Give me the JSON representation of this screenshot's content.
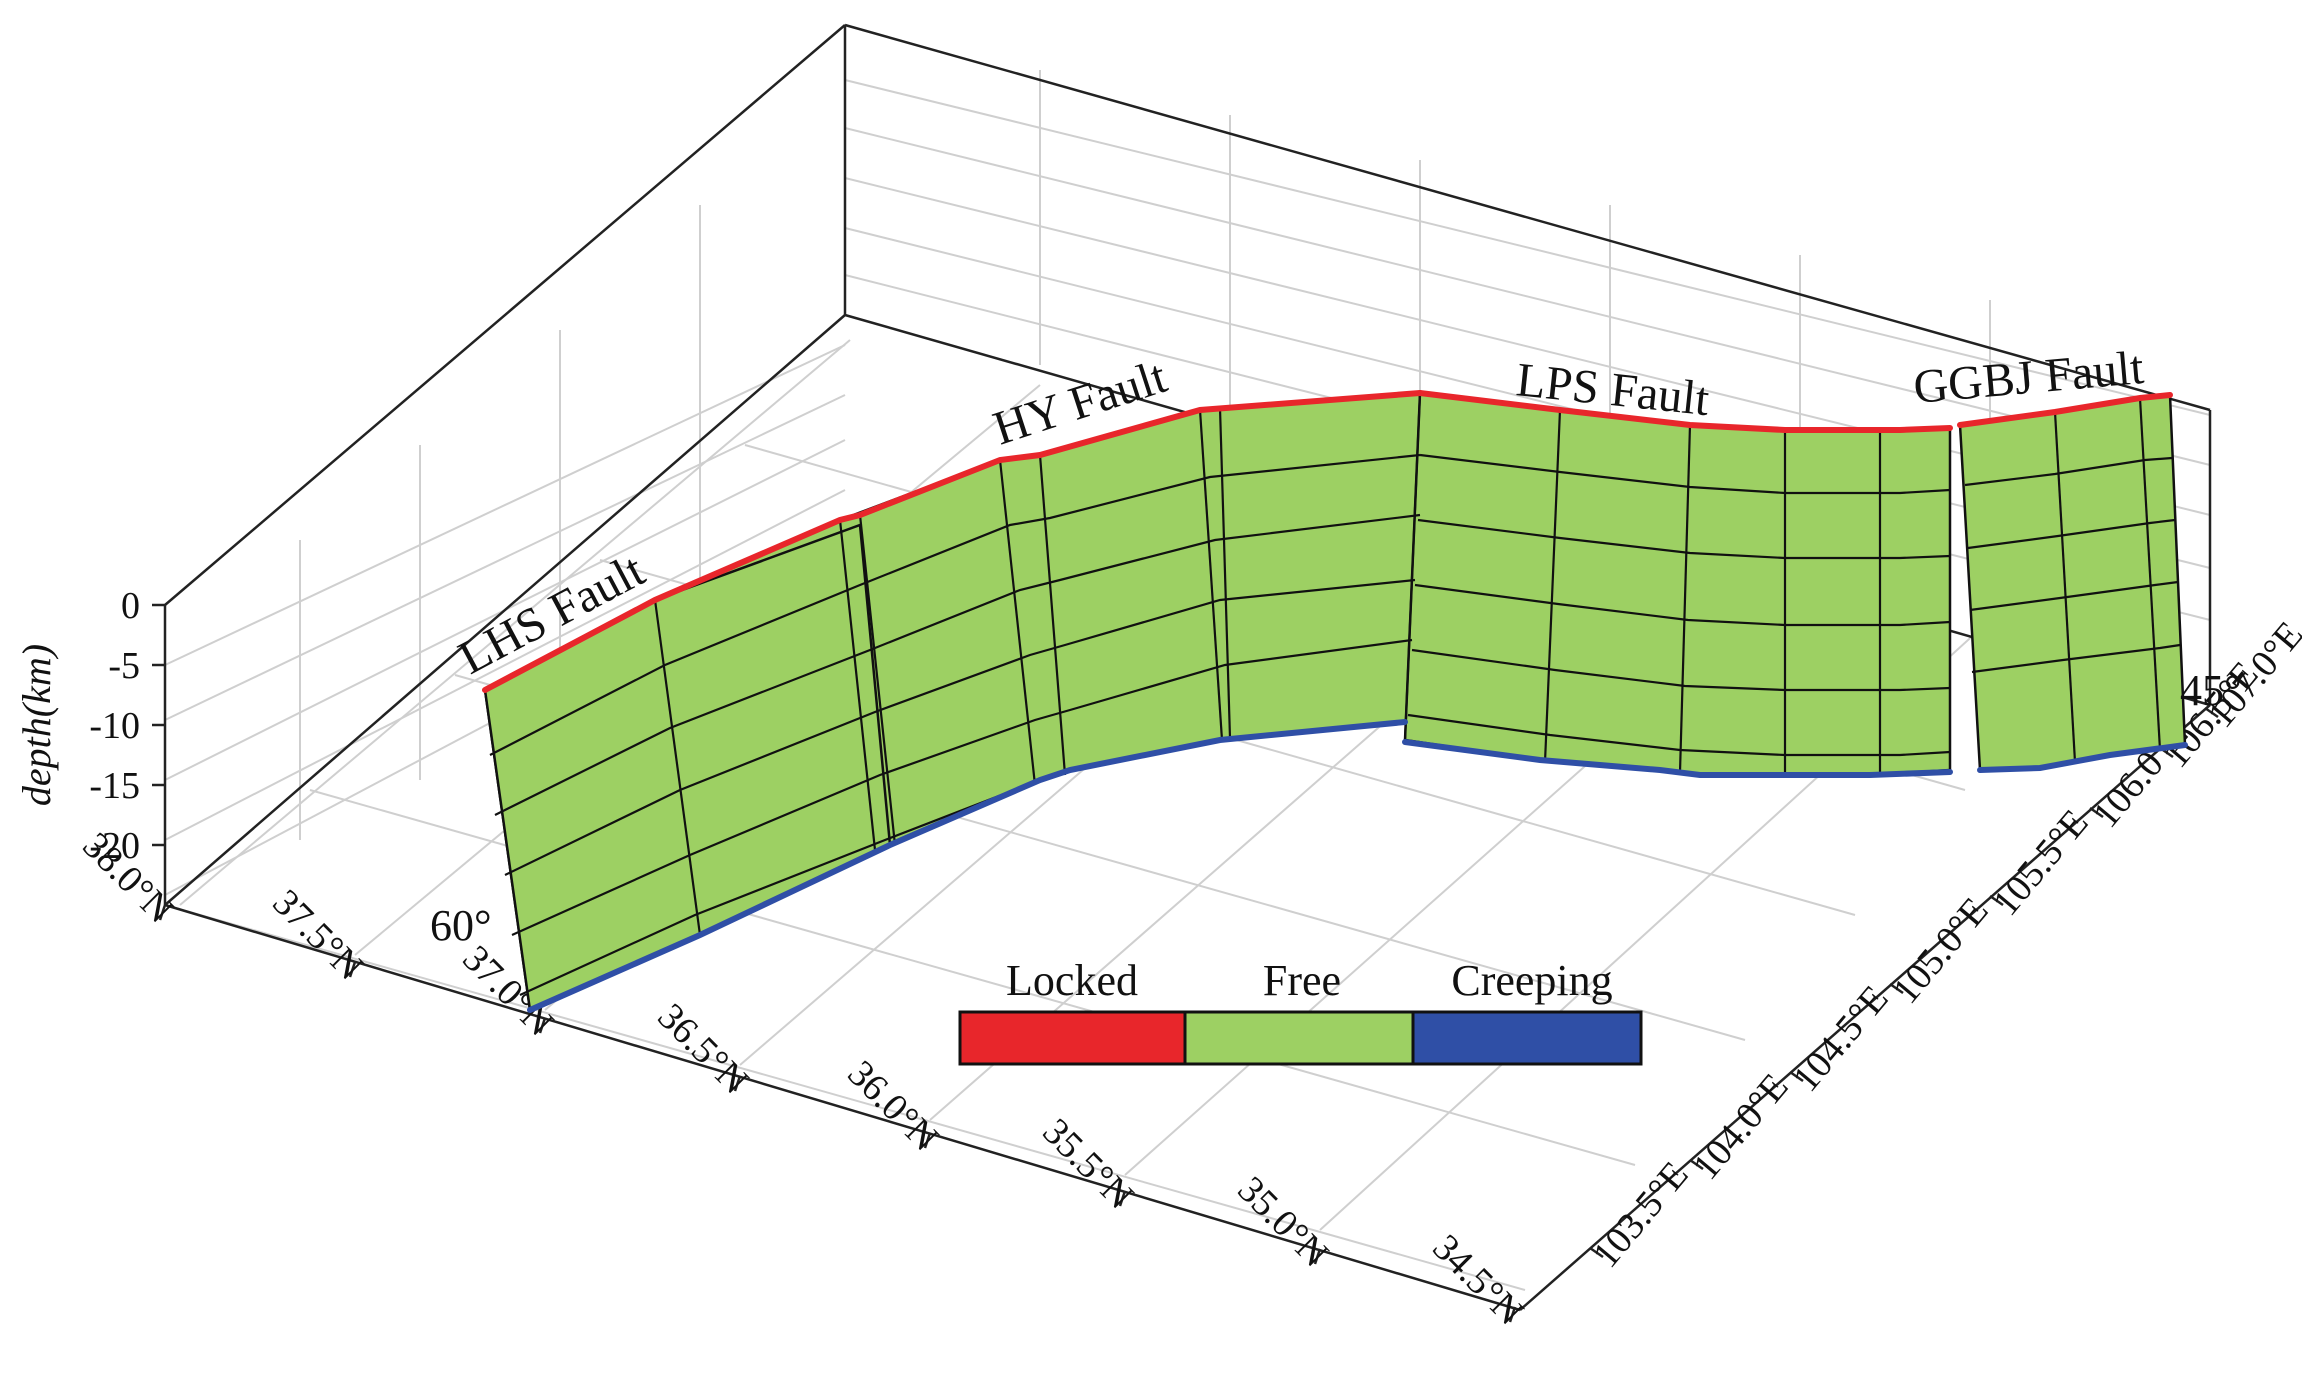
{
  "axes": {
    "depth_label": "depth(km)",
    "depth_ticks": [
      "0",
      "-5",
      "-10",
      "-15",
      "-20"
    ],
    "lat_ticks": [
      "38.0°N",
      "37.5°N",
      "37.0°N",
      "36.5°N",
      "36.0°N",
      "35.5°N",
      "35.0°N",
      "34.5°N"
    ],
    "lon_ticks": [
      "103.5°E",
      "104.0°E",
      "104.5°E",
      "105.0°E",
      "105.5°E",
      "106.0°E",
      "106.5°E",
      "107.0°E"
    ]
  },
  "faults": [
    {
      "name": "LHS Fault"
    },
    {
      "name": "HY Fault"
    },
    {
      "name": "LPS Fault"
    },
    {
      "name": "GGBJ Fault"
    }
  ],
  "dips": {
    "west": "60°",
    "east": "45°"
  },
  "legend": {
    "items": [
      {
        "label": "Locked",
        "color": "#e8262b"
      },
      {
        "label": "Free",
        "color": "#9dd063"
      },
      {
        "label": "Creeping",
        "color": "#2f4fa6"
      }
    ]
  },
  "colors": {
    "locked": "#e8262b",
    "free": "#9dd063",
    "creeping": "#2f4fa6",
    "grid": "#cfcfcf"
  }
}
